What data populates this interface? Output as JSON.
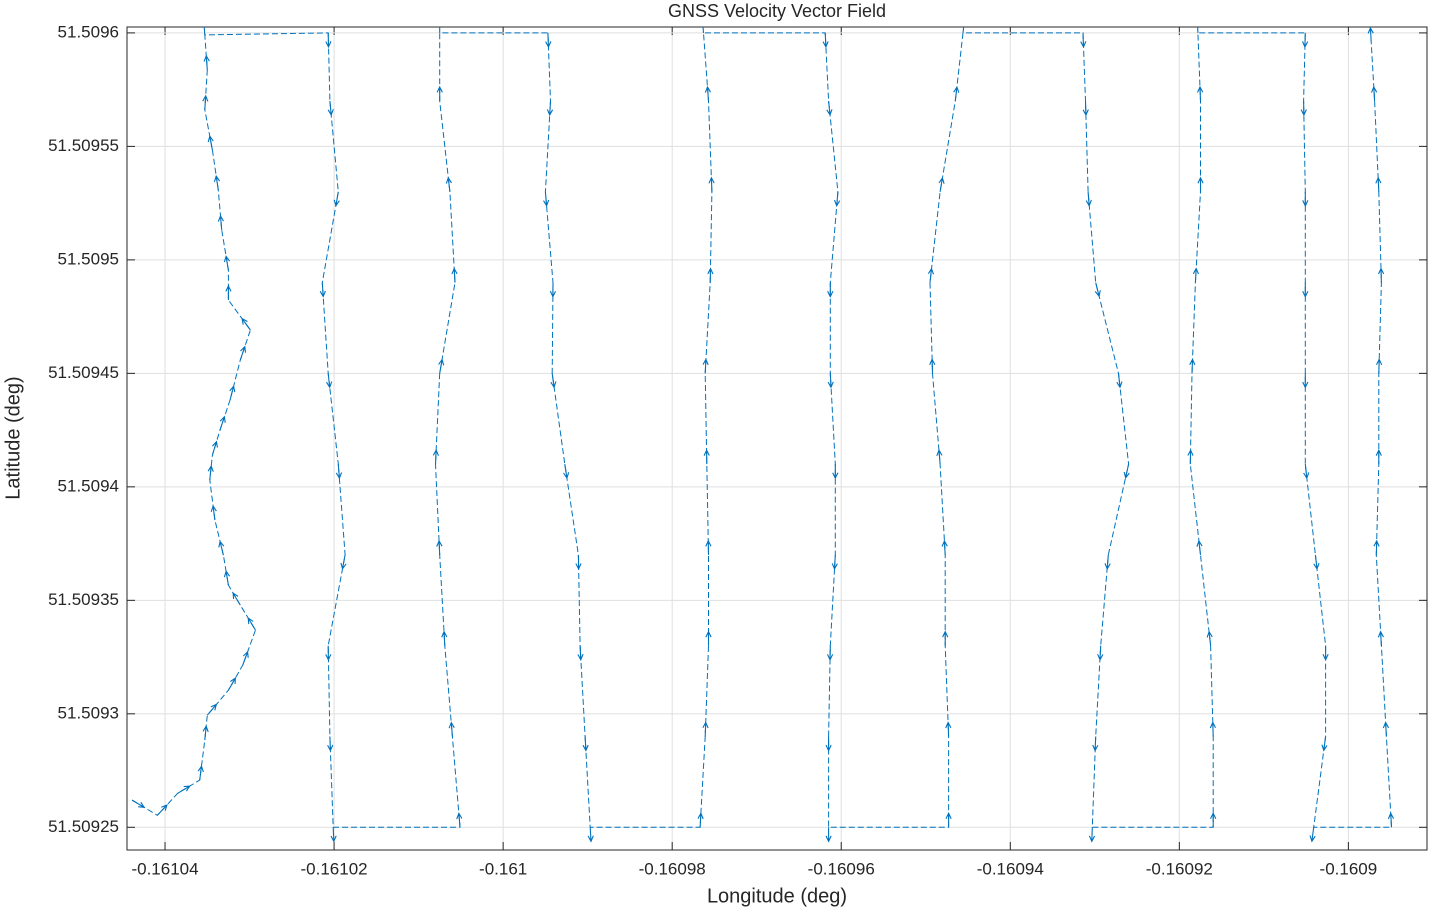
{
  "chart_data": {
    "type": "quiver",
    "title": "GNSS Velocity Vector Field",
    "xlabel": "Longitude (deg)",
    "ylabel": "Latitude (deg)",
    "color": "#0072bd",
    "grid": true,
    "xlim": [
      -0.1610445,
      -0.1608907
    ],
    "ylim": [
      51.50924,
      51.5096026
    ],
    "xticks": [
      -0.16104,
      -0.16102,
      -0.161,
      -0.16098,
      -0.16096,
      -0.16094,
      -0.16092,
      -0.1609
    ],
    "yticks": [
      51.50925,
      51.5093,
      51.50935,
      51.5094,
      51.50945,
      51.5095,
      51.50955,
      51.5096
    ],
    "x": [
      -0.1610439,
      -0.1610409,
      -0.1610385,
      -0.1610359,
      -0.1610353,
      -0.161035,
      -0.1610325,
      -0.1610308,
      -0.1610293,
      -0.1610311,
      -0.1610325,
      -0.1610331,
      -0.1610341,
      -0.1610347,
      -0.1610344,
      -0.1610335,
      -0.1610323,
      -0.1610311,
      -0.1610299,
      -0.1610325,
      -0.1610325,
      -0.1610333,
      -0.1610337,
      -0.1610344,
      -0.1610353,
      -0.161035,
      -0.1610353,
      -0.1610207,
      -0.1610205,
      -0.1610195,
      -0.1610214,
      -0.1610207,
      -0.1610195,
      -0.1610187,
      -0.1610207,
      -0.1610205,
      -0.1610201,
      -0.1610051,
      -0.161006,
      -0.1610069,
      -0.1610075,
      -0.161008,
      -0.1610075,
      -0.1610057,
      -0.1610063,
      -0.1610075,
      -0.1610075,
      -0.1609947,
      -0.1609944,
      -0.160995,
      -0.1609941,
      -0.1609942,
      -0.1609927,
      -0.1609911,
      -0.1609909,
      -0.1609903,
      -0.1609897,
      -0.1609767,
      -0.1609761,
      -0.1609757,
      -0.1609757,
      -0.1609759,
      -0.1609761,
      -0.1609755,
      -0.1609753,
      -0.1609757,
      -0.1609763,
      -0.1609619,
      -0.1609615,
      -0.1609604,
      -0.1609613,
      -0.1609613,
      -0.1609607,
      -0.1609607,
      -0.1609613,
      -0.1609615,
      -0.1609615,
      -0.1609473,
      -0.1609473,
      -0.1609477,
      -0.1609477,
      -0.1609483,
      -0.1609492,
      -0.1609495,
      -0.1609483,
      -0.1609465,
      -0.1609456,
      -0.1609314,
      -0.1609311,
      -0.1609308,
      -0.1609299,
      -0.1609272,
      -0.160926,
      -0.1609284,
      -0.1609293,
      -0.1609299,
      -0.1609303,
      -0.160916,
      -0.160916,
      -0.1609163,
      -0.1609175,
      -0.1609187,
      -0.1609185,
      -0.1609181,
      -0.1609175,
      -0.1609175,
      -0.1609178,
      -0.1609051,
      -0.1609053,
      -0.1609051,
      -0.1609051,
      -0.1609051,
      -0.1609051,
      -0.1609039,
      -0.1609027,
      -0.1609027,
      -0.1609041,
      -0.1608949,
      -0.1608955,
      -0.1608961,
      -0.1608967,
      -0.1608964,
      -0.1608964,
      -0.1608961,
      -0.1608964,
      -0.1608969,
      -0.1608973
    ],
    "y": [
      51.509262,
      51.5092553,
      51.509265,
      51.5092708,
      51.5092884,
      51.5092994,
      51.5093104,
      51.5093215,
      51.5093369,
      51.5093479,
      51.5093567,
      51.5093699,
      51.5093854,
      51.509403,
      51.509414,
      51.509425,
      51.5094383,
      51.5094559,
      51.5094691,
      51.5094823,
      51.5094955,
      51.5095132,
      51.5095308,
      51.5095484,
      51.5095661,
      51.5095837,
      51.5095991,
      51.5096,
      51.50957,
      51.50953,
      51.50949,
      51.50945,
      51.50941,
      51.50937,
      51.50933,
      51.50929,
      51.50925,
      51.50925,
      51.50929,
      51.50933,
      51.50937,
      51.50941,
      51.50945,
      51.50949,
      51.50953,
      51.50957,
      51.5096,
      51.5096,
      51.50957,
      51.50953,
      51.50949,
      51.50945,
      51.50941,
      51.50937,
      51.50933,
      51.50929,
      51.50925,
      51.50925,
      51.50929,
      51.50933,
      51.50937,
      51.50941,
      51.50945,
      51.50949,
      51.50953,
      51.50957,
      51.5096,
      51.5096,
      51.50957,
      51.50953,
      51.50949,
      51.50945,
      51.50941,
      51.50937,
      51.50933,
      51.50929,
      51.50925,
      51.50925,
      51.50929,
      51.50933,
      51.50937,
      51.50941,
      51.50945,
      51.50949,
      51.50953,
      51.50957,
      51.5096,
      51.5096,
      51.50957,
      51.50953,
      51.50949,
      51.50945,
      51.50941,
      51.50937,
      51.50933,
      51.50929,
      51.50925,
      51.50925,
      51.50929,
      51.50933,
      51.50937,
      51.50941,
      51.50945,
      51.50949,
      51.50953,
      51.50957,
      51.5096,
      51.5096,
      51.50957,
      51.50953,
      51.50949,
      51.50945,
      51.50941,
      51.50937,
      51.50933,
      51.50929,
      51.50925,
      51.50925,
      51.50929,
      51.50933,
      51.50937,
      51.50941,
      51.50945,
      51.50949,
      51.50953,
      51.50957,
      51.509596
    ]
  }
}
